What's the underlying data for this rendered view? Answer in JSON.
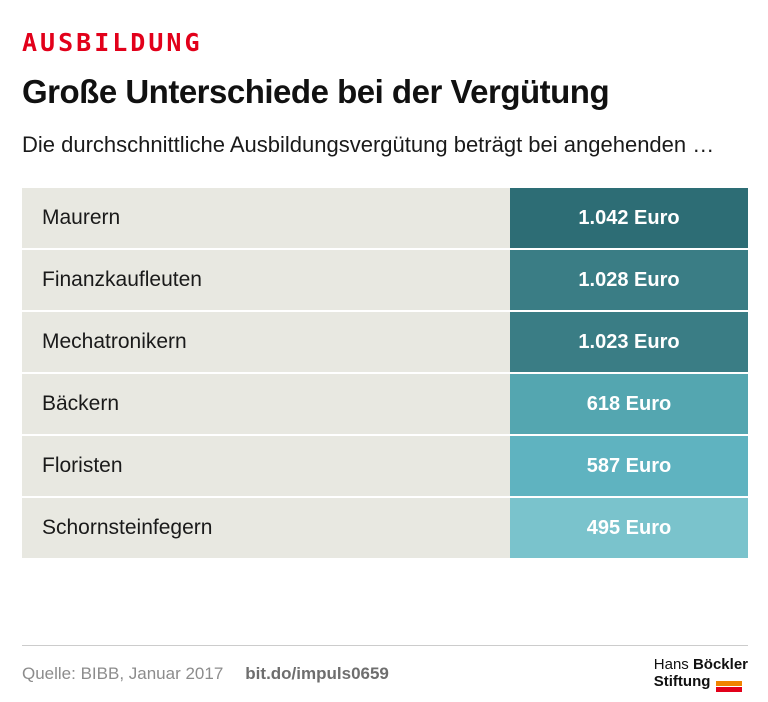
{
  "kicker": "AUSBILDUNG",
  "title": "Große Unterschiede bei der Vergütung",
  "subtitle": "Die durchschnittliche Ausbildungsvergütung beträgt bei angehenden …",
  "chart_data": {
    "type": "bar",
    "title": "Große Unterschiede bei der Vergütung",
    "categories": [
      "Maurern",
      "Finanzkaufleuten",
      "Mechatronikern",
      "Bäckern",
      "Floristen",
      "Schornsteinfegern"
    ],
    "values": [
      1042,
      1028,
      1023,
      618,
      587,
      495
    ],
    "value_labels": [
      "1.042 Euro",
      "1.028 Euro",
      "1.023 Euro",
      "618 Euro",
      "587 Euro",
      "495 Euro"
    ],
    "unit": "Euro",
    "bar_colors": [
      "#2d6d75",
      "#3a7d85",
      "#3a7d85",
      "#54a6b0",
      "#5fb3c0",
      "#7ac3cc"
    ],
    "row_background": "#e8e8e1",
    "legend_position": "none",
    "grid": false
  },
  "footer": {
    "source": "Quelle: BIBB, Januar 2017",
    "link": "bit.do/impuls0659",
    "logo": {
      "word1": "Hans",
      "word2": "Böckler",
      "word3": "Stiftung"
    }
  },
  "colors": {
    "accent_red": "#e2001a",
    "logo_orange": "#f08300",
    "logo_red": "#e2001a"
  }
}
